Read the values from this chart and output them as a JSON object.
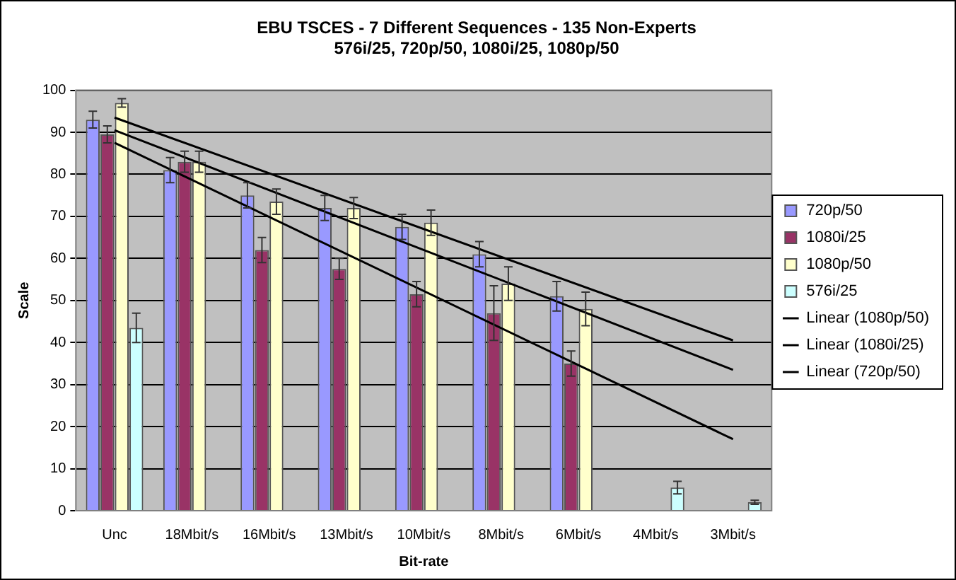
{
  "chart_data": {
    "type": "bar",
    "title": "EBU TSCES - 7 Different Sequences - 135 Non-Experts",
    "subtitle": "576i/25, 720p/50, 1080i/25, 1080p/50",
    "xlabel": "Bit-rate",
    "ylabel": "Scale",
    "categories": [
      "Unc",
      "18Mbit/s",
      "16Mbit/s",
      "13Mbit/s",
      "10Mbit/s",
      "8Mbit/s",
      "6Mbit/s",
      "4Mbit/s",
      "3Mbit/s"
    ],
    "series": [
      {
        "name": "720p/50",
        "color": "#9999ff",
        "values": [
          93,
          81,
          75,
          72,
          67.5,
          61,
          51,
          null,
          null
        ],
        "errors": [
          2,
          3,
          3,
          3,
          3,
          3,
          3.5,
          null,
          null
        ]
      },
      {
        "name": "1080i/25",
        "color": "#993366",
        "values": [
          89.5,
          83,
          62,
          57.5,
          51.5,
          47,
          35,
          null,
          null
        ],
        "errors": [
          2,
          2.5,
          3,
          2.5,
          3,
          6.5,
          3,
          null,
          null
        ]
      },
      {
        "name": "1080p/50",
        "color": "#ffffcc",
        "values": [
          97,
          83,
          73.5,
          72,
          68.5,
          54,
          48,
          null,
          null
        ],
        "errors": [
          1,
          2.5,
          3,
          2.5,
          3,
          4,
          4,
          null,
          null
        ]
      },
      {
        "name": "576i/25",
        "color": "#ccffff",
        "values": [
          43.5,
          null,
          null,
          null,
          null,
          null,
          null,
          5.5,
          2
        ],
        "errors": [
          3.5,
          null,
          null,
          null,
          null,
          null,
          null,
          1.5,
          0.5
        ]
      },
      {
        "name": "Linear (1080p/50)",
        "type": "line",
        "color": "#000000",
        "x": [
          "Unc",
          "3Mbit/s"
        ],
        "values": [
          93.5,
          40.5
        ]
      },
      {
        "name": "Linear (1080i/25)",
        "type": "line",
        "color": "#000000",
        "x": [
          "Unc",
          "3Mbit/s"
        ],
        "values": [
          87.5,
          17
        ]
      },
      {
        "name": "Linear (720p/50)",
        "type": "line",
        "color": "#000000",
        "x": [
          "Unc",
          "3Mbit/s"
        ],
        "values": [
          90.5,
          33.5
        ]
      }
    ],
    "ylim": [
      0,
      100
    ],
    "yticks": [
      0,
      10,
      20,
      30,
      40,
      50,
      60,
      70,
      80,
      90,
      100
    ],
    "grid": "y",
    "legend": "right",
    "marker": "none"
  }
}
